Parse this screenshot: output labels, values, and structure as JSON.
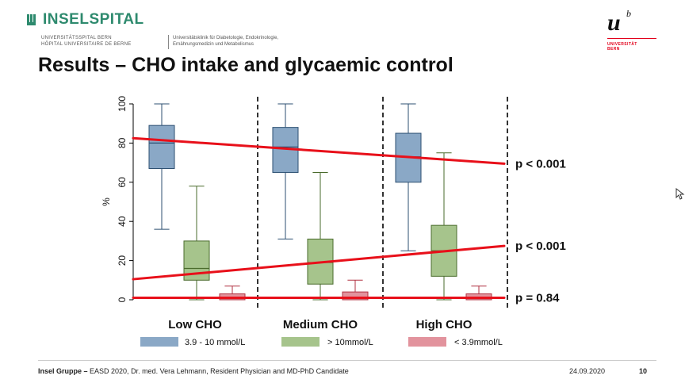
{
  "header": {
    "logo_name": "INSELSPITAL",
    "logo_sub1": "UNIVERSITÄTSSPITAL BERN",
    "logo_sub2": "HÔPITAL UNIVERSITAIRE DE BERNE",
    "dept1": "Universitätsklinik für Diabetologie, Endokrinologie,",
    "dept2": "Ernährungsmedizin und Metabolismus",
    "unibe_mark": "u",
    "unibe_sup": "b",
    "unibe_t1": "UNIVERSITÄT",
    "unibe_t2": "BERN"
  },
  "title": "Results – CHO intake and glycaemic control",
  "colors": {
    "blue_fill": "#8aa8c6",
    "blue_stroke": "#2c4f72",
    "green_fill": "#a6c48c",
    "green_stroke": "#4a6b2c",
    "red_fill": "#e2939d",
    "red_stroke": "#b03040",
    "trend": "#e8101a"
  },
  "chart_data": {
    "type": "box",
    "ylabel": "%",
    "ylim": [
      0,
      100
    ],
    "yticks": [
      "0",
      "20",
      "40",
      "60",
      "80",
      "100"
    ],
    "categories": [
      "Low CHO",
      "Medium CHO",
      "High CHO"
    ],
    "series": [
      {
        "name": "3.9 - 10 mmol/L",
        "boxes": [
          {
            "min": 36,
            "q1": 67,
            "median": 80,
            "q3": 89,
            "max": 100
          },
          {
            "min": 31,
            "q1": 65,
            "median": 78,
            "q3": 88,
            "max": 100
          },
          {
            "min": 25,
            "q1": 60,
            "median": 73,
            "q3": 85,
            "max": 100
          }
        ]
      },
      {
        "name": "> 10mmol/L",
        "boxes": [
          {
            "min": 0,
            "q1": 10,
            "median": 16,
            "q3": 30,
            "max": 58
          },
          {
            "min": 0,
            "q1": 8,
            "median": 19,
            "q3": 31,
            "max": 65
          },
          {
            "min": 0,
            "q1": 12,
            "median": 25,
            "q3": 38,
            "max": 75
          }
        ]
      },
      {
        "name": "< 3.9mmol/L",
        "boxes": [
          {
            "min": 0,
            "q1": 0,
            "median": 1,
            "q3": 3,
            "max": 7
          },
          {
            "min": 0,
            "q1": 0,
            "median": 1,
            "q3": 4,
            "max": 10
          },
          {
            "min": 0,
            "q1": 0,
            "median": 1,
            "q3": 3,
            "max": 7
          }
        ]
      }
    ],
    "trend_lines": [
      {
        "start": 82.5,
        "end": 69.5,
        "label": "p < 0.001"
      },
      {
        "start": 10.5,
        "end": 27.5,
        "label": "p < 0.001"
      },
      {
        "start": 1,
        "end": 1,
        "label": "p = 0.84"
      }
    ]
  },
  "footer": {
    "org": "Insel Gruppe –",
    "text": " EASD 2020, Dr. med. Vera Lehmann, Resident Physician and MD-PhD Candidate",
    "date": "24.09.2020",
    "page": "10"
  }
}
